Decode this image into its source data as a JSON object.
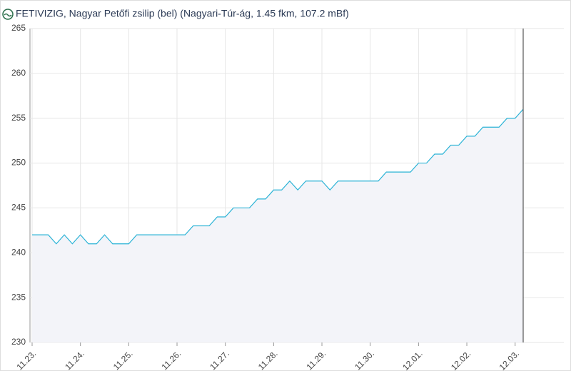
{
  "chart_data": {
    "type": "line",
    "title": "FETIVIZIG, Nagyar Petőfi zsilip (bel) (Nagyari-Túr-ág, 1.45 fkm, 107.2 mBf)",
    "categories": [
      "11.23.",
      null,
      null,
      null,
      null,
      null,
      "11.24.",
      null,
      null,
      null,
      null,
      null,
      "11.25.",
      null,
      null,
      null,
      null,
      null,
      "11.26.",
      null,
      null,
      null,
      null,
      null,
      "11.27.",
      null,
      null,
      null,
      null,
      null,
      "11.28.",
      null,
      null,
      null,
      null,
      null,
      "11.29.",
      null,
      null,
      null,
      null,
      null,
      "11.30.",
      null,
      null,
      null,
      null,
      null,
      "12.01.",
      null,
      null,
      null,
      null,
      null,
      "12.02.",
      null,
      null,
      null,
      null,
      null,
      "12.03.",
      null
    ],
    "values": [
      242,
      242,
      242,
      241,
      242,
      241,
      242,
      241,
      241,
      242,
      241,
      241,
      241,
      242,
      242,
      242,
      242,
      242,
      242,
      242,
      243,
      243,
      243,
      244,
      244,
      245,
      245,
      245,
      246,
      246,
      247,
      247,
      248,
      247,
      248,
      248,
      248,
      247,
      248,
      248,
      248,
      248,
      248,
      248,
      249,
      249,
      249,
      249,
      250,
      250,
      251,
      251,
      252,
      252,
      253,
      253,
      254,
      254,
      254,
      255,
      255,
      256
    ],
    "color": "#2bb3d6",
    "ylim": [
      230,
      265
    ],
    "yticks": [
      230,
      235,
      240,
      245,
      250,
      255,
      260,
      265
    ],
    "grid": true
  }
}
